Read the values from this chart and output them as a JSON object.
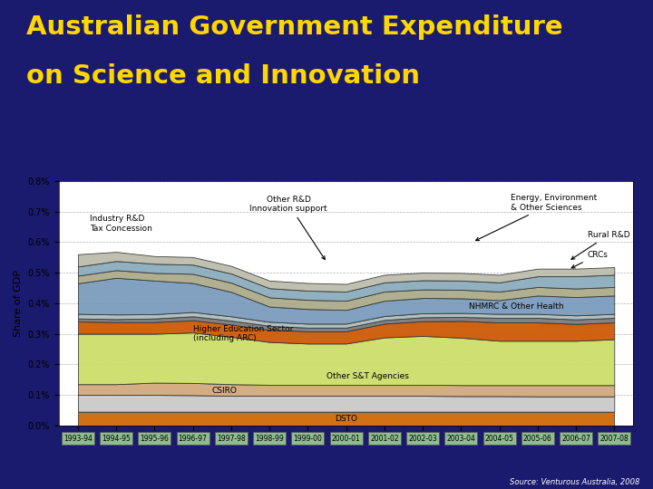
{
  "title_line1": "Australian Government Expenditure",
  "title_line2": "on Science and Innovation",
  "title_color": "#FFD700",
  "background_color": "#1a1a6e",
  "plot_bg": "#ffffff",
  "ylabel": "Share of GDP",
  "source": "Source: Venturous Australia, 2008",
  "years": [
    "1993-94",
    "1994-95",
    "1995-96",
    "1996-97",
    "1997-98",
    "1998-99",
    "1999-00",
    "2000-01",
    "2001-02",
    "2002-03",
    "2003-04",
    "2004-05",
    "2005-06",
    "2006-07",
    "2007-08"
  ],
  "ylim": [
    0.0,
    0.008
  ],
  "yticks": [
    0.0,
    0.001,
    0.002,
    0.003,
    0.004,
    0.005,
    0.006,
    0.007,
    0.008
  ],
  "ytick_labels": [
    "0.0%",
    "0.1%",
    "0.2%",
    "0.3%",
    "0.4%",
    "0.5%",
    "0.6%",
    "0.7%",
    "0.8%"
  ],
  "layer_order": [
    "DSTO",
    "CSIRO",
    "Other S&T Agencies",
    "Higher Education Sector (including ARC)",
    "NHMRC & Other Health",
    "CRCs",
    "Rural R&D",
    "Industry R&D Tax Concession",
    "Innovation support",
    "Energy, Environment & Other Sciences",
    "Other R&D"
  ],
  "layers": {
    "DSTO": {
      "color": "#CC6600",
      "values": [
        0.00045,
        0.00045,
        0.00045,
        0.00045,
        0.00045,
        0.00045,
        0.00045,
        0.00045,
        0.00045,
        0.00045,
        0.00045,
        0.00045,
        0.00045,
        0.00045,
        0.00045
      ]
    },
    "CSIRO": {
      "color": "#C8C8C8",
      "values": [
        0.00055,
        0.00055,
        0.00055,
        0.00054,
        0.00052,
        0.00052,
        0.00052,
        0.00052,
        0.00052,
        0.00052,
        0.00051,
        0.00051,
        0.0005,
        0.0005,
        0.0005
      ]
    },
    "Other S&T Agencies": {
      "color": "#D2A679",
      "values": [
        0.00035,
        0.00035,
        0.0004,
        0.0004,
        0.00038,
        0.00036,
        0.00036,
        0.00036,
        0.00036,
        0.00036,
        0.00036,
        0.00036,
        0.00037,
        0.00037,
        0.00037
      ]
    },
    "Higher Education Sector (including ARC)": {
      "color": "#CCDD66",
      "values": [
        0.00165,
        0.00165,
        0.0016,
        0.00165,
        0.00155,
        0.0014,
        0.00135,
        0.00135,
        0.00155,
        0.0016,
        0.00155,
        0.00145,
        0.00145,
        0.00145,
        0.0015
      ]
    },
    "NHMRC & Other Health": {
      "color": "#CC5500",
      "values": [
        0.0004,
        0.00038,
        0.00038,
        0.0004,
        0.0004,
        0.0004,
        0.0004,
        0.0004,
        0.00045,
        0.00048,
        0.00055,
        0.0006,
        0.0006,
        0.00055,
        0.00055
      ]
    },
    "CRCs": {
      "color": "#777777",
      "values": [
        0.0001,
        0.0001,
        0.00012,
        0.00013,
        0.00013,
        0.00013,
        0.00012,
        0.00012,
        0.00012,
        0.00013,
        0.00013,
        0.00015,
        0.00015,
        0.00015,
        0.00015
      ]
    },
    "Rural R&D": {
      "color": "#AABBBB",
      "values": [
        0.00015,
        0.00015,
        0.00014,
        0.00014,
        0.00014,
        0.00013,
        0.00013,
        0.00013,
        0.00013,
        0.00013,
        0.00013,
        0.00013,
        0.00013,
        0.00013,
        0.00013
      ]
    },
    "Industry R&D Tax Concession": {
      "color": "#7799BB",
      "values": [
        0.001,
        0.0012,
        0.0011,
        0.00095,
        0.0008,
        0.0005,
        0.00048,
        0.00045,
        0.0005,
        0.0005,
        0.00048,
        0.00045,
        0.0006,
        0.0006,
        0.0006
      ]
    },
    "Innovation support": {
      "color": "#AAAA88",
      "values": [
        0.00025,
        0.00025,
        0.00025,
        0.0003,
        0.0003,
        0.0003,
        0.0003,
        0.0003,
        0.0003,
        0.00028,
        0.00028,
        0.00028,
        0.00028,
        0.00028,
        0.00028
      ]
    },
    "Energy, Environment & Other Sciences": {
      "color": "#88AABB",
      "values": [
        0.0003,
        0.0003,
        0.0003,
        0.0003,
        0.0003,
        0.0003,
        0.0003,
        0.0003,
        0.0003,
        0.0003,
        0.0003,
        0.0003,
        0.00035,
        0.0004,
        0.0004
      ]
    },
    "Other R&D": {
      "color": "#BBBBAA",
      "values": [
        0.0004,
        0.0003,
        0.00025,
        0.00025,
        0.00025,
        0.00025,
        0.00025,
        0.00025,
        0.00025,
        0.00025,
        0.00025,
        0.00025,
        0.00025,
        0.00025,
        0.00025
      ]
    }
  }
}
